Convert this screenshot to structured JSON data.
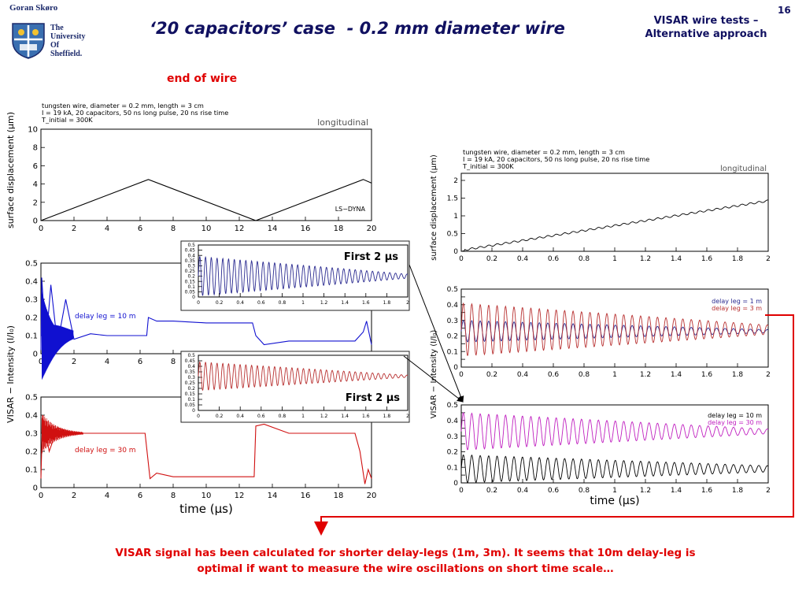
{
  "header": {
    "author": "Goran Skøro",
    "university_lines": [
      "The",
      "University",
      "Of",
      "Sheffield."
    ],
    "title": "‘20 capacitors’ case  - 0.2 mm diameter wire",
    "topic_line1": "VISAR wire tests –",
    "topic_line2": "Alternative approach",
    "page_number": "16"
  },
  "annotations": {
    "end_of_wire": "end of wire",
    "first_2us_a": "First 2 μs",
    "first_2us_b": "First 2 μs"
  },
  "caption": {
    "line1": "VISAR signal has been calculated for shorter delay-legs (1m, 3m). It seems that 10m delay-leg is",
    "line2": "optimal if want to measure the wire oscillations on short time scale…"
  },
  "colors": {
    "black": "#000000",
    "blue": "#1010d0",
    "red": "#d01010",
    "navy": "#2a2a90",
    "brick": "#b83030",
    "purple": "#c020c0",
    "arrow": "#e00000"
  },
  "chart_data": [
    {
      "id": "left_displacement",
      "type": "line",
      "info_lines": [
        "tungsten wire, diameter = 0.2 mm, length = 3 cm",
        "I = 19 kA, 20 capacitors, 50 ns long pulse, 20 ns rise time",
        "T_initial = 300K"
      ],
      "tag": "longitudinal",
      "code_label": "LS−DYNA",
      "ylabel": "surface displacement (μm)",
      "xlim": [
        0,
        20
      ],
      "ylim": [
        0,
        10
      ],
      "xticks": [
        0,
        2,
        4,
        6,
        8,
        10,
        12,
        14,
        16,
        18,
        20
      ],
      "yticks": [
        0,
        2,
        4,
        6,
        8,
        10
      ],
      "series": [
        {
          "color": "black",
          "x": [
            0,
            6.5,
            13,
            19.5,
            20
          ],
          "y": [
            0,
            4.5,
            0,
            4.5,
            4.1
          ]
        }
      ]
    },
    {
      "id": "left_visar_10m",
      "type": "line",
      "ylabel": "VISAR − Intensity (I/I₀)",
      "xlim": [
        0,
        20
      ],
      "ylim": [
        0,
        0.5
      ],
      "xticks": [
        0,
        2,
        4,
        6,
        8
      ],
      "yticks": [
        0,
        0.1,
        0.2,
        0.3,
        0.4,
        0.5
      ],
      "legend": [
        {
          "name": "delay leg = 10 m",
          "color": "blue"
        }
      ],
      "series": [
        {
          "name": "delay leg = 10 m",
          "color": "blue",
          "x": [
            0,
            0.05,
            0.3,
            0.6,
            1.0,
            1.5,
            2.0,
            3.0,
            4.0,
            5.0,
            6.4,
            6.5,
            7.0,
            8.0,
            10.0,
            12.8,
            13.0,
            13.5,
            15.0,
            17.0,
            19.0,
            19.5,
            19.7,
            20.0
          ],
          "y": [
            0.02,
            0.42,
            0.05,
            0.38,
            0.05,
            0.3,
            0.08,
            0.11,
            0.1,
            0.1,
            0.1,
            0.2,
            0.18,
            0.18,
            0.17,
            0.17,
            0.1,
            0.05,
            0.07,
            0.07,
            0.07,
            0.12,
            0.18,
            0.05
          ]
        }
      ]
    },
    {
      "id": "left_visar_30m",
      "type": "line",
      "xlabel": "time (μs)",
      "xlim": [
        0,
        20
      ],
      "ylim": [
        0,
        0.5
      ],
      "xticks": [
        0,
        2,
        4,
        6,
        8,
        10,
        12,
        14,
        16,
        18,
        20
      ],
      "yticks": [
        0,
        0.1,
        0.2,
        0.3,
        0.4,
        0.5
      ],
      "legend": [
        {
          "name": "delay leg = 30 m",
          "color": "red"
        }
      ],
      "series": [
        {
          "name": "delay leg = 30 m",
          "color": "red",
          "x": [
            0,
            0.1,
            0.5,
            1.0,
            2.0,
            3.0,
            4.0,
            6.3,
            6.6,
            7.0,
            8.0,
            10.0,
            12.9,
            13.0,
            13.5,
            15.0,
            17.0,
            19.0,
            19.3,
            19.6,
            19.8,
            20.0
          ],
          "y": [
            0.05,
            0.4,
            0.2,
            0.33,
            0.3,
            0.3,
            0.3,
            0.3,
            0.05,
            0.08,
            0.06,
            0.06,
            0.06,
            0.34,
            0.35,
            0.3,
            0.3,
            0.3,
            0.2,
            0.02,
            0.1,
            0.05
          ]
        }
      ]
    },
    {
      "id": "inset_10m_first2us",
      "type": "line",
      "xlim": [
        0,
        2
      ],
      "ylim": [
        0,
        0.5
      ],
      "xticks": [
        0,
        0.2,
        0.4,
        0.6,
        0.8,
        1,
        1.2,
        1.4,
        1.6,
        1.8,
        2
      ],
      "yticks": [
        0,
        0.05,
        0.1,
        0.15,
        0.2,
        0.25,
        0.3,
        0.35,
        0.4,
        0.45,
        0.5
      ],
      "series": [
        {
          "color": "navy",
          "mean": 0.2,
          "amp_start": 0.19,
          "amp_end": 0.02,
          "period": 0.055
        }
      ]
    },
    {
      "id": "inset_30m_first2us",
      "type": "line",
      "xlim": [
        0,
        2
      ],
      "ylim": [
        0,
        0.5
      ],
      "xticks": [
        0,
        0.2,
        0.4,
        0.6,
        0.8,
        1,
        1.2,
        1.4,
        1.6,
        1.8,
        2
      ],
      "yticks": [
        0,
        0.05,
        0.1,
        0.15,
        0.2,
        0.25,
        0.3,
        0.35,
        0.4,
        0.45,
        0.5
      ],
      "series": [
        {
          "color": "brick",
          "mean": 0.31,
          "amp_start": 0.13,
          "amp_end": 0.01,
          "period": 0.055
        }
      ]
    },
    {
      "id": "right_displacement",
      "type": "line",
      "info_lines": [
        "tungsten wire, diameter = 0.2 mm, length = 3 cm",
        "I = 19 kA, 20 capacitors, 50 ns long pulse, 20 ns rise time",
        "T_initial = 300K"
      ],
      "tag": "longitudinal",
      "ylabel": "surface displacement (μm)",
      "xlim": [
        0,
        2
      ],
      "ylim": [
        0,
        2.2
      ],
      "xticks": [
        0,
        0.2,
        0.4,
        0.6,
        0.8,
        1,
        1.2,
        1.4,
        1.6,
        1.8,
        2
      ],
      "yticks": [
        0,
        0.5,
        1,
        1.5,
        2
      ],
      "series": [
        {
          "color": "black",
          "slope": 0.7,
          "wiggle": 0.05,
          "period": 0.055
        }
      ]
    },
    {
      "id": "right_visar_1m_3m",
      "type": "line",
      "xlim": [
        0,
        2
      ],
      "ylim": [
        0,
        0.5
      ],
      "xticks": [
        0,
        0.2,
        0.4,
        0.6,
        0.8,
        1,
        1.2,
        1.4,
        1.6,
        1.8,
        2
      ],
      "yticks": [
        0,
        0.05,
        0.1,
        0.15,
        0.2,
        0.25,
        0.3,
        0.35,
        0.4,
        0.45,
        0.5
      ],
      "ylabel": "VISAR − Intensity (I/I₀)",
      "legend": [
        {
          "name": "delay leg = 1 m",
          "color": "navy"
        },
        {
          "name": "delay leg = 3 m",
          "color": "brick"
        }
      ],
      "series": [
        {
          "name": "delay leg = 1 m",
          "color": "navy",
          "mean": 0.23,
          "amp_start": 0.07,
          "amp_end": 0.01,
          "period": 0.055
        },
        {
          "name": "delay leg = 3 m",
          "color": "brick",
          "mean": 0.24,
          "amp_start": 0.17,
          "amp_end": 0.03,
          "period": 0.055
        }
      ]
    },
    {
      "id": "right_visar_10m_30m",
      "type": "line",
      "xlabel": "time (μs)",
      "xlim": [
        0,
        2
      ],
      "ylim": [
        0,
        0.5
      ],
      "xticks": [
        0,
        0.2,
        0.4,
        0.6,
        0.8,
        1,
        1.2,
        1.4,
        1.6,
        1.8,
        2
      ],
      "yticks": [
        0,
        0.05,
        0.1,
        0.15,
        0.2,
        0.25,
        0.3,
        0.35,
        0.4,
        0.45,
        0.5
      ],
      "legend": [
        {
          "name": "delay leg = 10 m",
          "color": "black"
        },
        {
          "name": "delay leg = 30 m",
          "color": "purple"
        }
      ],
      "series": [
        {
          "name": "delay leg = 10 m",
          "color": "black",
          "mean": 0.09,
          "amp_start": 0.09,
          "amp_end": 0.02,
          "period": 0.055
        },
        {
          "name": "delay leg = 30 m",
          "color": "purple",
          "mean": 0.33,
          "amp_start": 0.12,
          "amp_end": 0.015,
          "period": 0.055
        }
      ]
    }
  ]
}
